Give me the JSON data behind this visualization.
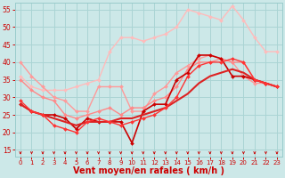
{
  "background_color": "#cce8e8",
  "grid_color": "#aad4d4",
  "xlabel": "Vent moyen/en rafales ( km/h )",
  "xlabel_color": "#cc0000",
  "xlabel_fontsize": 7,
  "tick_color": "#cc0000",
  "ylim": [
    13,
    57
  ],
  "yticks": [
    15,
    20,
    25,
    30,
    35,
    40,
    45,
    50,
    55
  ],
  "xlim": [
    -0.5,
    23.5
  ],
  "xticks": [
    0,
    1,
    2,
    3,
    4,
    5,
    6,
    7,
    8,
    9,
    10,
    11,
    12,
    13,
    14,
    15,
    16,
    17,
    18,
    19,
    20,
    21,
    22,
    23
  ],
  "series": [
    {
      "x": [
        0,
        1,
        2,
        3,
        4,
        5,
        6,
        7,
        8,
        9,
        10,
        11,
        12,
        13,
        14,
        15,
        16,
        17,
        18,
        19,
        20,
        21,
        22,
        23
      ],
      "y": [
        36,
        33,
        32,
        32,
        32,
        33,
        34,
        35,
        43,
        47,
        47,
        46,
        47,
        48,
        50,
        55,
        54,
        53,
        52,
        56,
        52,
        47,
        43,
        43
      ],
      "color": "#ffbbbb",
      "lw": 1.0,
      "marker": "D",
      "ms": 2.0
    },
    {
      "x": [
        0,
        1,
        2,
        3,
        4,
        5,
        6,
        7,
        8,
        9,
        10,
        11,
        12,
        13,
        14,
        15,
        16,
        17,
        18,
        19,
        20,
        21,
        22,
        23
      ],
      "y": [
        40,
        36,
        33,
        30,
        29,
        26,
        26,
        33,
        33,
        33,
        26,
        26,
        31,
        33,
        37,
        39,
        41,
        42,
        41,
        40,
        36,
        34,
        34,
        33
      ],
      "color": "#ff9999",
      "lw": 1.0,
      "marker": "D",
      "ms": 2.0
    },
    {
      "x": [
        0,
        1,
        2,
        3,
        4,
        5,
        6,
        7,
        8,
        9,
        10,
        11,
        12,
        13,
        14,
        15,
        16,
        17,
        18,
        19,
        20,
        21,
        22,
        23
      ],
      "y": [
        35,
        32,
        30,
        29,
        25,
        24,
        25,
        26,
        27,
        25,
        27,
        27,
        29,
        30,
        33,
        38,
        40,
        40,
        41,
        40,
        40,
        35,
        34,
        33
      ],
      "color": "#ff8888",
      "lw": 1.0,
      "marker": "D",
      "ms": 2.0
    },
    {
      "x": [
        0,
        1,
        2,
        3,
        4,
        5,
        6,
        7,
        8,
        9,
        10,
        11,
        12,
        13,
        14,
        15,
        16,
        17,
        18,
        19,
        20,
        21,
        22,
        23
      ],
      "y": [
        28,
        26,
        25,
        25,
        24,
        21,
        24,
        23,
        23,
        23,
        17,
        26,
        28,
        28,
        35,
        37,
        42,
        42,
        41,
        36,
        36,
        35,
        34,
        33
      ],
      "color": "#cc0000",
      "lw": 1.2,
      "marker": "D",
      "ms": 2.0
    },
    {
      "x": [
        0,
        1,
        2,
        3,
        4,
        5,
        6,
        7,
        8,
        9,
        10,
        11,
        12,
        13,
        14,
        15,
        16,
        17,
        18,
        19,
        20,
        21,
        22,
        23
      ],
      "y": [
        28,
        26,
        25,
        24,
        23,
        22,
        23,
        23,
        23,
        24,
        24,
        25,
        26,
        27,
        29,
        31,
        34,
        36,
        37,
        38,
        37,
        35,
        34,
        33
      ],
      "color": "#dd2222",
      "lw": 1.5,
      "marker": null,
      "ms": 0
    },
    {
      "x": [
        0,
        1,
        2,
        3,
        4,
        5,
        6,
        7,
        8,
        9,
        10,
        11,
        12,
        13,
        14,
        15,
        16,
        17,
        18,
        19,
        20,
        21,
        22,
        23
      ],
      "y": [
        29,
        26,
        25,
        22,
        21,
        20,
        23,
        24,
        23,
        22,
        23,
        24,
        25,
        27,
        30,
        36,
        39,
        40,
        40,
        41,
        40,
        35,
        34,
        33
      ],
      "color": "#ff3333",
      "lw": 1.0,
      "marker": "D",
      "ms": 2.0
    }
  ],
  "arrow_color": "#cc0000"
}
